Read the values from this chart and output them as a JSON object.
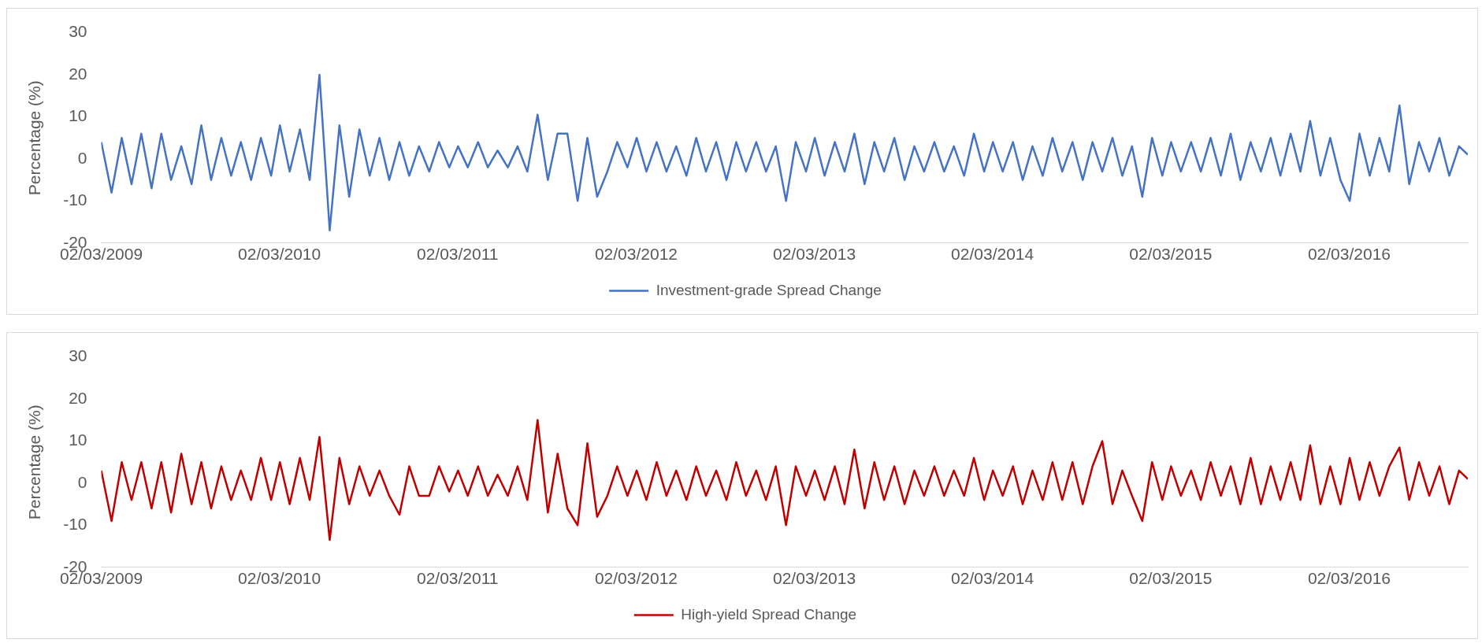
{
  "chart_data": [
    {
      "type": "line",
      "ylabel": "Percentage (%)",
      "legend": "bottom",
      "grid": false,
      "xlim": [
        "2009-03-02",
        "2016-10-31"
      ],
      "ylim": [
        -20,
        30
      ],
      "yticks": [
        -20,
        -10,
        0,
        10,
        20,
        30
      ],
      "xticks": [
        {
          "value": "2009-03-02",
          "label": "02/03/2009"
        },
        {
          "value": "2010-03-02",
          "label": "02/03/2010"
        },
        {
          "value": "2011-03-02",
          "label": "02/03/2011"
        },
        {
          "value": "2012-03-02",
          "label": "02/03/2012"
        },
        {
          "value": "2013-03-02",
          "label": "02/03/2013"
        },
        {
          "value": "2014-03-02",
          "label": "02/03/2014"
        },
        {
          "value": "2015-03-02",
          "label": "02/03/2015"
        },
        {
          "value": "2016-03-02",
          "label": "02/03/2016"
        }
      ],
      "x": [
        "2009-03-02",
        "2009-03-23",
        "2009-04-13",
        "2009-05-03",
        "2009-05-23",
        "2009-06-13",
        "2009-07-03",
        "2009-07-23",
        "2009-08-13",
        "2009-09-03",
        "2009-09-23",
        "2009-10-13",
        "2009-11-03",
        "2009-11-23",
        "2009-12-13",
        "2010-01-03",
        "2010-01-23",
        "2010-02-13",
        "2010-03-03",
        "2010-03-23",
        "2010-04-13",
        "2010-05-03",
        "2010-05-23",
        "2010-06-13",
        "2010-07-03",
        "2010-07-23",
        "2010-08-13",
        "2010-09-03",
        "2010-09-23",
        "2010-10-13",
        "2010-11-03",
        "2010-11-23",
        "2010-12-13",
        "2011-01-03",
        "2011-01-23",
        "2011-02-13",
        "2011-03-03",
        "2011-03-23",
        "2011-04-13",
        "2011-05-03",
        "2011-05-23",
        "2011-06-13",
        "2011-07-03",
        "2011-07-23",
        "2011-08-13",
        "2011-09-03",
        "2011-09-23",
        "2011-10-13",
        "2011-11-03",
        "2011-11-23",
        "2011-12-13",
        "2012-01-03",
        "2012-01-23",
        "2012-02-13",
        "2012-03-03",
        "2012-03-23",
        "2012-04-13",
        "2012-05-03",
        "2012-05-23",
        "2012-06-13",
        "2012-07-03",
        "2012-07-23",
        "2012-08-13",
        "2012-09-03",
        "2012-09-23",
        "2012-10-13",
        "2012-11-03",
        "2012-11-23",
        "2012-12-13",
        "2013-01-03",
        "2013-01-23",
        "2013-02-13",
        "2013-03-03",
        "2013-03-23",
        "2013-04-13",
        "2013-05-03",
        "2013-05-23",
        "2013-06-13",
        "2013-07-03",
        "2013-07-23",
        "2013-08-13",
        "2013-09-03",
        "2013-09-23",
        "2013-10-13",
        "2013-11-03",
        "2013-11-23",
        "2013-12-13",
        "2014-01-03",
        "2014-01-23",
        "2014-02-13",
        "2014-03-03",
        "2014-03-23",
        "2014-04-13",
        "2014-05-03",
        "2014-05-23",
        "2014-06-13",
        "2014-07-03",
        "2014-07-23",
        "2014-08-13",
        "2014-09-03",
        "2014-09-23",
        "2014-10-13",
        "2014-11-03",
        "2014-11-23",
        "2014-12-13",
        "2015-01-03",
        "2015-01-23",
        "2015-02-13",
        "2015-03-03",
        "2015-03-23",
        "2015-04-13",
        "2015-05-03",
        "2015-05-23",
        "2015-06-13",
        "2015-07-03",
        "2015-07-23",
        "2015-08-13",
        "2015-09-03",
        "2015-09-23",
        "2015-10-13",
        "2015-11-03",
        "2015-11-23",
        "2015-12-13",
        "2016-01-03",
        "2016-01-23",
        "2016-02-13",
        "2016-03-03",
        "2016-03-23",
        "2016-04-13",
        "2016-05-03",
        "2016-05-23",
        "2016-06-13",
        "2016-07-03",
        "2016-07-23",
        "2016-08-13",
        "2016-09-03",
        "2016-09-23",
        "2016-10-13",
        "2016-10-31"
      ],
      "series": [
        {
          "name": "Investment-grade Spread Change",
          "color": "#4472c4",
          "values": [
            4,
            -8,
            5,
            -6,
            6,
            -7,
            6,
            -5,
            3,
            -6,
            8,
            -5,
            5,
            -4,
            4,
            -5,
            5,
            -4,
            8,
            -3,
            7,
            -5,
            20,
            -17,
            8,
            -9,
            7,
            -4,
            5,
            -5,
            4,
            -4,
            3,
            -3,
            4,
            -2,
            3,
            -2,
            4,
            -2,
            2,
            -2,
            3,
            -3,
            10.5,
            -5,
            6,
            6,
            -10,
            5,
            -9,
            -3,
            4,
            -2,
            5,
            -3,
            4,
            -3,
            3,
            -4,
            5,
            -3,
            4,
            -5,
            4,
            -3,
            4,
            -3,
            3,
            -10,
            4,
            -3,
            5,
            -4,
            4,
            -3,
            6,
            -6,
            4,
            -3,
            5,
            -5,
            3,
            -3,
            4,
            -3,
            3,
            -4,
            6,
            -3,
            4,
            -3,
            4,
            -5,
            3,
            -4,
            5,
            -3,
            4,
            -5,
            4,
            -3,
            5,
            -4,
            3,
            -9,
            5,
            -4,
            4,
            -3,
            4,
            -3,
            5,
            -4,
            6,
            -5,
            4,
            -3,
            5,
            -4,
            6,
            -3,
            9,
            -4,
            5,
            -5,
            -10,
            6,
            -4,
            5,
            -3,
            12.7,
            -6,
            4,
            -3,
            5,
            -4,
            3,
            1
          ]
        }
      ]
    },
    {
      "type": "line",
      "ylabel": "Percentage (%)",
      "legend": "bottom",
      "grid": false,
      "xlim": [
        "2009-03-02",
        "2016-10-31"
      ],
      "ylim": [
        -20,
        30
      ],
      "yticks": [
        -20,
        -10,
        0,
        10,
        20,
        30
      ],
      "xticks": [
        {
          "value": "2009-03-02",
          "label": "02/03/2009"
        },
        {
          "value": "2010-03-02",
          "label": "02/03/2010"
        },
        {
          "value": "2011-03-02",
          "label": "02/03/2011"
        },
        {
          "value": "2012-03-02",
          "label": "02/03/2012"
        },
        {
          "value": "2013-03-02",
          "label": "02/03/2013"
        },
        {
          "value": "2014-03-02",
          "label": "02/03/2014"
        },
        {
          "value": "2015-03-02",
          "label": "02/03/2015"
        },
        {
          "value": "2016-03-02",
          "label": "02/03/2016"
        }
      ],
      "x": [
        "2009-03-02",
        "2009-03-23",
        "2009-04-13",
        "2009-05-03",
        "2009-05-23",
        "2009-06-13",
        "2009-07-03",
        "2009-07-23",
        "2009-08-13",
        "2009-09-03",
        "2009-09-23",
        "2009-10-13",
        "2009-11-03",
        "2009-11-23",
        "2009-12-13",
        "2010-01-03",
        "2010-01-23",
        "2010-02-13",
        "2010-03-03",
        "2010-03-23",
        "2010-04-13",
        "2010-05-03",
        "2010-05-23",
        "2010-06-13",
        "2010-07-03",
        "2010-07-23",
        "2010-08-13",
        "2010-09-03",
        "2010-09-23",
        "2010-10-13",
        "2010-11-03",
        "2010-11-23",
        "2010-12-13",
        "2011-01-03",
        "2011-01-23",
        "2011-02-13",
        "2011-03-03",
        "2011-03-23",
        "2011-04-13",
        "2011-05-03",
        "2011-05-23",
        "2011-06-13",
        "2011-07-03",
        "2011-07-23",
        "2011-08-13",
        "2011-09-03",
        "2011-09-23",
        "2011-10-13",
        "2011-11-03",
        "2011-11-23",
        "2011-12-13",
        "2012-01-03",
        "2012-01-23",
        "2012-02-13",
        "2012-03-03",
        "2012-03-23",
        "2012-04-13",
        "2012-05-03",
        "2012-05-23",
        "2012-06-13",
        "2012-07-03",
        "2012-07-23",
        "2012-08-13",
        "2012-09-03",
        "2012-09-23",
        "2012-10-13",
        "2012-11-03",
        "2012-11-23",
        "2012-12-13",
        "2013-01-03",
        "2013-01-23",
        "2013-02-13",
        "2013-03-03",
        "2013-03-23",
        "2013-04-13",
        "2013-05-03",
        "2013-05-23",
        "2013-06-13",
        "2013-07-03",
        "2013-07-23",
        "2013-08-13",
        "2013-09-03",
        "2013-09-23",
        "2013-10-13",
        "2013-11-03",
        "2013-11-23",
        "2013-12-13",
        "2014-01-03",
        "2014-01-23",
        "2014-02-13",
        "2014-03-03",
        "2014-03-23",
        "2014-04-13",
        "2014-05-03",
        "2014-05-23",
        "2014-06-13",
        "2014-07-03",
        "2014-07-23",
        "2014-08-13",
        "2014-09-03",
        "2014-09-23",
        "2014-10-13",
        "2014-11-03",
        "2014-11-23",
        "2014-12-13",
        "2015-01-03",
        "2015-01-23",
        "2015-02-13",
        "2015-03-03",
        "2015-03-23",
        "2015-04-13",
        "2015-05-03",
        "2015-05-23",
        "2015-06-13",
        "2015-07-03",
        "2015-07-23",
        "2015-08-13",
        "2015-09-03",
        "2015-09-23",
        "2015-10-13",
        "2015-11-03",
        "2015-11-23",
        "2015-12-13",
        "2016-01-03",
        "2016-01-23",
        "2016-02-13",
        "2016-03-03",
        "2016-03-23",
        "2016-04-13",
        "2016-05-03",
        "2016-05-23",
        "2016-06-13",
        "2016-07-03",
        "2016-07-23",
        "2016-08-13",
        "2016-09-03",
        "2016-09-23",
        "2016-10-13",
        "2016-10-31"
      ],
      "series": [
        {
          "name": "High-yield Spread Change",
          "color": "#c00000",
          "values": [
            3,
            -9,
            5,
            -4,
            5,
            -6,
            5,
            -7,
            7,
            -5,
            5,
            -6,
            4,
            -4,
            3,
            -4,
            6,
            -4,
            5,
            -5,
            6,
            -4,
            11,
            -13.5,
            6,
            -5,
            4,
            -3,
            3,
            -3,
            -7.5,
            4,
            -3,
            -3,
            4,
            -2,
            3,
            -3,
            4,
            -3,
            2,
            -3,
            4,
            -4,
            15,
            -7,
            7,
            -6,
            -10,
            9.5,
            -8,
            -3,
            4,
            -3,
            3,
            -4,
            5,
            -3,
            3,
            -4,
            4,
            -3,
            3,
            -4,
            5,
            -3,
            3,
            -4,
            4,
            -10,
            4,
            -3,
            3,
            -4,
            4,
            -5,
            8,
            -6,
            5,
            -4,
            4,
            -5,
            3,
            -3,
            4,
            -3,
            3,
            -3,
            6,
            -4,
            3,
            -3,
            4,
            -5,
            3,
            -4,
            5,
            -4,
            5,
            -5,
            4,
            10,
            -5,
            3,
            -3,
            -9,
            5,
            -4,
            4,
            -3,
            3,
            -4,
            5,
            -3,
            4,
            -5,
            6,
            -5,
            4,
            -4,
            5,
            -4,
            9,
            -5,
            4,
            -5,
            6,
            -4,
            5,
            -3,
            4,
            8.5,
            -4,
            5,
            -3,
            4,
            -5,
            3,
            1
          ]
        }
      ]
    }
  ]
}
